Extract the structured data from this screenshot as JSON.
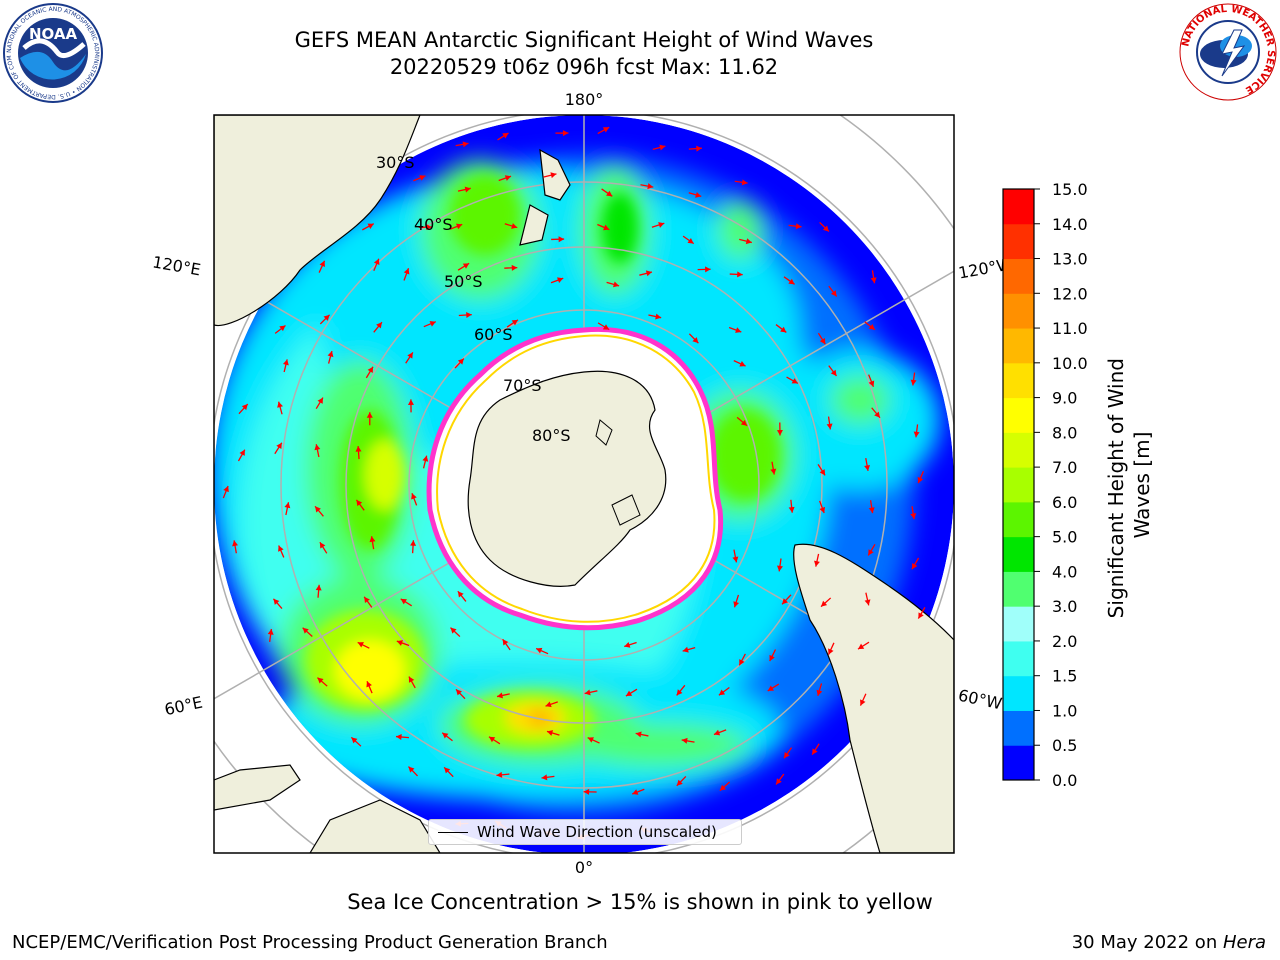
{
  "header": {
    "title_line1": "GEFS MEAN Antarctic Significant Height of Wind Waves",
    "title_line2": "20220529 t06z 096h fcst   Max: 11.62"
  },
  "logos": {
    "left": "NOAA",
    "left_ring_text": "NATIONAL OCEANIC AND ATMOSPHERIC ADMINISTRATION • U.S. DEPARTMENT OF COMMERCE",
    "right_ring_text": "NATIONAL WEATHER SERVICE"
  },
  "map": {
    "projection": "south-polar-stereographic",
    "longitude_labels": [
      "180°",
      "120°E",
      "120°W",
      "60°E",
      "60°W",
      "0°"
    ],
    "latitude_labels": [
      "30°S",
      "40°S",
      "50°S",
      "60°S",
      "70°S",
      "80°S"
    ],
    "legend": "Wind Wave Direction (unscaled)",
    "colors": {
      "land": "#efefdc",
      "ice": "#ffffff",
      "ice_edge": "#ff33cc",
      "arrow": "#ff0000",
      "grid": "#b0b0b0"
    }
  },
  "colorbar": {
    "label": "Significant Height of Wind Waves [m]",
    "ticks": [
      "0.0",
      "0.5",
      "1.0",
      "1.5",
      "2.0",
      "3.0",
      "4.0",
      "5.0",
      "6.0",
      "7.0",
      "8.0",
      "9.0",
      "10.0",
      "11.0",
      "12.0",
      "13.0",
      "14.0",
      "15.0"
    ],
    "colors": [
      "#0000ff",
      "#0070ff",
      "#00e6ff",
      "#3ffff0",
      "#a0fffa",
      "#50ff70",
      "#00e600",
      "#5cf500",
      "#a8ff00",
      "#d6ff00",
      "#ffff00",
      "#ffe000",
      "#ffb800",
      "#ff9000",
      "#ff6800",
      "#ff3000",
      "#ff0000"
    ]
  },
  "notes": {
    "ice": "Sea Ice Concentration > 15% is shown in pink to yellow"
  },
  "footer": {
    "left": "NCEP/EMC/Verification Post Processing Product Generation Branch",
    "date": "30 May 2022 on ",
    "host": "Hera"
  }
}
